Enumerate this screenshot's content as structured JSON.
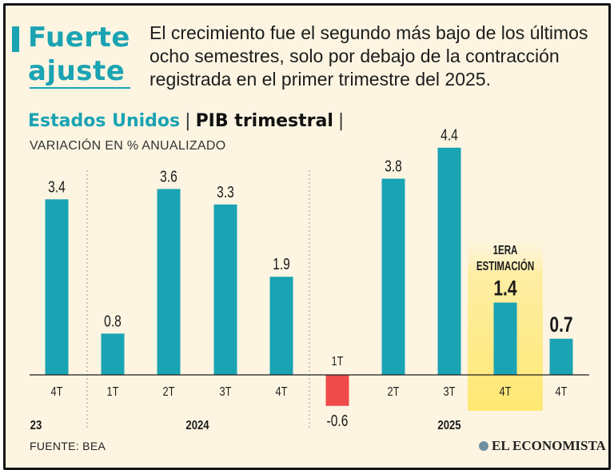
{
  "header": {
    "title_line1": "Fuerte",
    "title_line2": "ajuste",
    "subtitle": "El crecimiento fue el segundo más bajo de los últimos ocho semestres, solo por debajo de la contracción registrada en el primer trimestre del 2025."
  },
  "heading": {
    "region": "Estados Unidos",
    "separator": "|",
    "metric": "PIB trimestral",
    "trailing_separator": "|"
  },
  "unit_label": "VARIACIÓN EN % ANUALIZADO",
  "footer": {
    "source": "FUENTE: BEA",
    "brand": "EL ECONOMISTA"
  },
  "colors": {
    "teal": "#1aa3b3",
    "negative": "#ef4b4b",
    "highlight": "#ffe873",
    "background": "#fdf5e2"
  },
  "chart_data": {
    "type": "bar",
    "ylabel": "VARIACIÓN EN % ANUALIZADO",
    "ylim": [
      -0.6,
      4.4
    ],
    "categories": [
      "4T",
      "1T",
      "2T",
      "3T",
      "4T",
      "1T",
      "2T",
      "3T",
      "4T",
      "4T"
    ],
    "values": [
      3.4,
      0.8,
      3.6,
      3.3,
      1.9,
      -0.6,
      3.8,
      4.4,
      1.4,
      0.7
    ],
    "value_labels": [
      "3.4",
      "0.8",
      "3.6",
      "3.3",
      "1.9",
      "-0.6",
      "3.8",
      "4.4",
      "1.4",
      "0.7"
    ],
    "years": [
      "23",
      "2024",
      "2025"
    ],
    "annotation": "1ERA ESTIMACIÓN"
  }
}
